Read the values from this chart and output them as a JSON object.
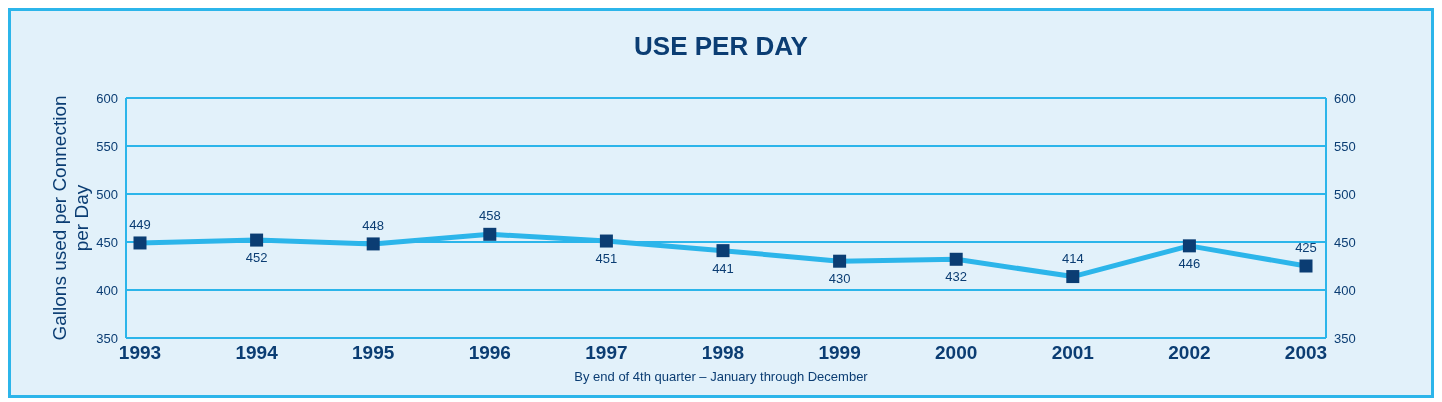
{
  "chart_data": {
    "type": "line",
    "title": "USE PER DAY",
    "ylabel": "Gallons used per Connection per Day",
    "annotations": [
      "By end of 4th quarter – January through December"
    ],
    "categories": [
      "1993",
      "1994",
      "1995",
      "1996",
      "1997",
      "1998",
      "1999",
      "2000",
      "2001",
      "2002",
      "2003"
    ],
    "series": [
      {
        "color": "#2cb5ea",
        "values": [
          449,
          452,
          448,
          458,
          451,
          441,
          430,
          432,
          414,
          446,
          425
        ]
      }
    ],
    "ylim": [
      350,
      600
    ],
    "yticks": [
      350,
      400,
      450,
      500,
      550,
      600
    ],
    "y2lim": [
      350,
      600
    ],
    "y2ticks": [
      350,
      400,
      450,
      500,
      550,
      600
    ],
    "grid": "y",
    "marker": "square",
    "line_style": "solid",
    "data_labels": true
  }
}
